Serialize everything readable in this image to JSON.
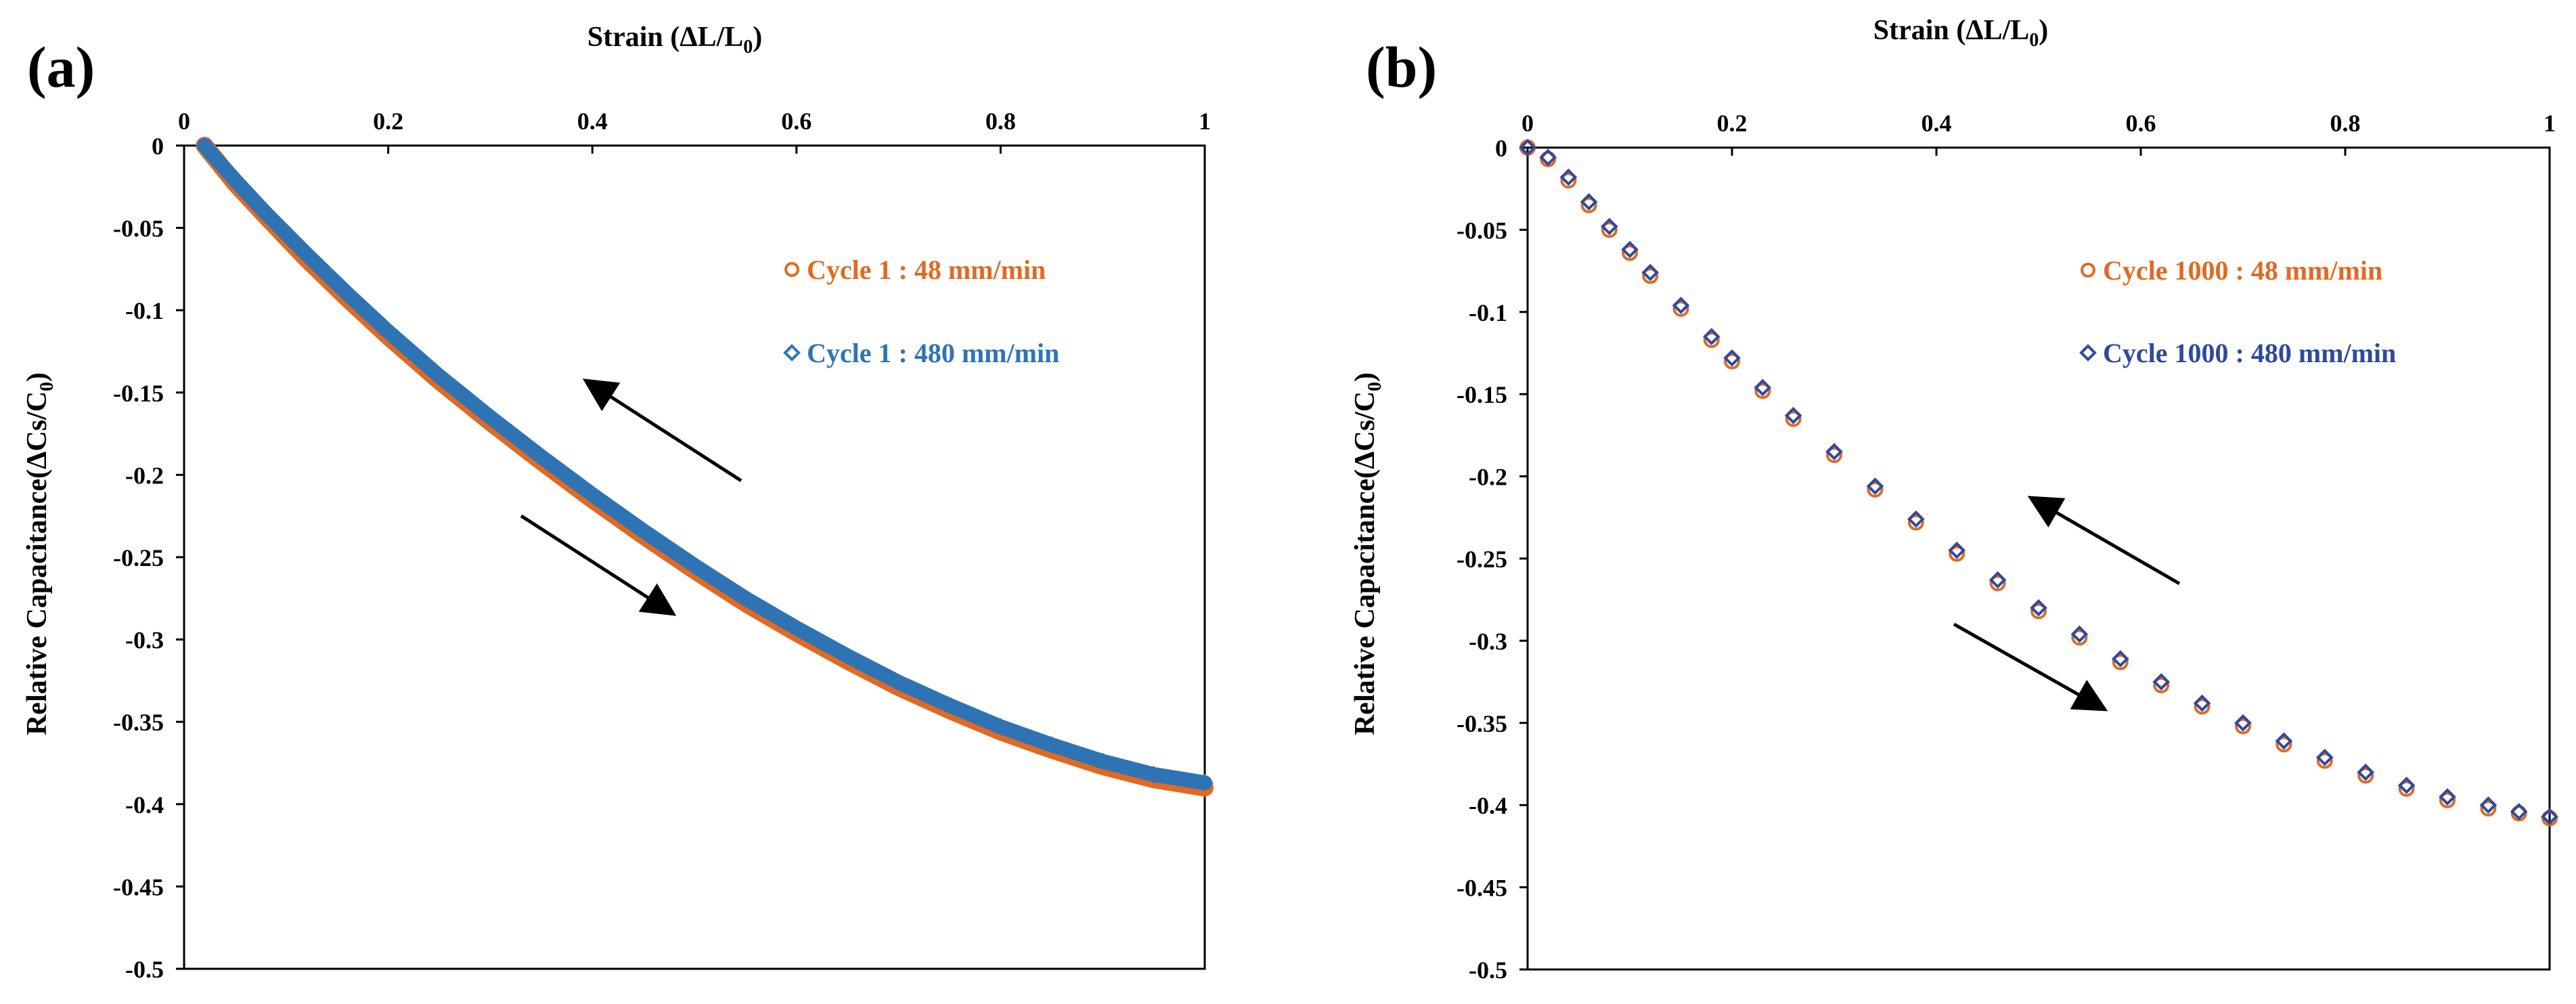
{
  "chart_data": [
    {
      "panel_label": "(a)",
      "type": "scatter",
      "title": "",
      "xlabel": {
        "main": "Strain (ΔL/L",
        "sub": "0",
        "close": ")"
      },
      "ylabel": {
        "main": "Relative Capacitance(ΔCs/C",
        "sub": "0",
        "close": ")"
      },
      "xaxis_position": "top",
      "xlim": [
        0,
        1
      ],
      "ylim": [
        -0.5,
        0
      ],
      "xticks": [
        0,
        0.2,
        0.4,
        0.6,
        0.8,
        1
      ],
      "xtick_labels": [
        "0",
        "0.2",
        "0.4",
        "0.6",
        "0.8",
        "1"
      ],
      "yticks": [
        0,
        -0.05,
        -0.1,
        -0.15,
        -0.2,
        -0.25,
        -0.3,
        -0.35,
        -0.4,
        -0.45,
        -0.5
      ],
      "ytick_labels": [
        "0",
        "-0.05",
        "-0.1",
        "-0.15",
        "-0.2",
        "-0.25",
        "-0.3",
        "-0.35",
        "-0.4",
        "-0.45",
        "-0.5"
      ],
      "grid": false,
      "legend_position": "upper-right",
      "series": [
        {
          "name": "Cycle 1 : 48 mm/min",
          "marker": "circle",
          "color": "#E06A23",
          "x": [
            0.02,
            0.05,
            0.08,
            0.12,
            0.16,
            0.2,
            0.25,
            0.3,
            0.35,
            0.4,
            0.45,
            0.5,
            0.55,
            0.6,
            0.65,
            0.7,
            0.75,
            0.8,
            0.85,
            0.9,
            0.95,
            1.0
          ],
          "y": [
            0,
            -0.023,
            -0.043,
            -0.069,
            -0.093,
            -0.116,
            -0.143,
            -0.168,
            -0.192,
            -0.215,
            -0.237,
            -0.258,
            -0.278,
            -0.296,
            -0.313,
            -0.329,
            -0.343,
            -0.356,
            -0.367,
            -0.377,
            -0.385,
            -0.39
          ]
        },
        {
          "name": "Cycle 1 : 480 mm/min",
          "marker": "diamond",
          "color": "#2E74B5",
          "x": [
            0.02,
            0.05,
            0.08,
            0.12,
            0.16,
            0.2,
            0.25,
            0.3,
            0.35,
            0.4,
            0.45,
            0.5,
            0.55,
            0.6,
            0.65,
            0.7,
            0.75,
            0.8,
            0.85,
            0.9,
            0.95,
            1.0
          ],
          "y": [
            0,
            -0.021,
            -0.041,
            -0.066,
            -0.09,
            -0.113,
            -0.14,
            -0.165,
            -0.189,
            -0.212,
            -0.234,
            -0.255,
            -0.275,
            -0.293,
            -0.31,
            -0.326,
            -0.34,
            -0.353,
            -0.364,
            -0.374,
            -0.382,
            -0.387
          ]
        }
      ],
      "annotations": [
        {
          "type": "arrow",
          "direction": "up-left",
          "meaning": "release"
        },
        {
          "type": "arrow",
          "direction": "down-right",
          "meaning": "stretch"
        }
      ]
    },
    {
      "panel_label": "(b)",
      "type": "scatter",
      "title": "",
      "xlabel": {
        "main": "Strain (ΔL/L",
        "sub": "0",
        "close": ")"
      },
      "ylabel": {
        "main": "Relative Capacitance(ΔCs/C",
        "sub": "0",
        "close": ")"
      },
      "xaxis_position": "top",
      "xlim": [
        0,
        1
      ],
      "ylim": [
        -0.5,
        0
      ],
      "xticks": [
        0,
        0.2,
        0.4,
        0.6,
        0.8,
        1
      ],
      "xtick_labels": [
        "0",
        "0.2",
        "0.4",
        "0.6",
        "0.8",
        "1"
      ],
      "yticks": [
        0,
        -0.05,
        -0.1,
        -0.15,
        -0.2,
        -0.25,
        -0.3,
        -0.35,
        -0.4,
        -0.45,
        -0.5
      ],
      "ytick_labels": [
        "0",
        "-0.05",
        "-0.1",
        "-0.15",
        "-0.2",
        "-0.25",
        "-0.3",
        "-0.35",
        "-0.4",
        "-0.45",
        "-0.5"
      ],
      "grid": false,
      "legend_position": "upper-right",
      "series": [
        {
          "name": "Cycle 1000 : 48 mm/min",
          "marker": "circle",
          "color": "#E06A23",
          "x": [
            0.0,
            0.02,
            0.04,
            0.06,
            0.08,
            0.1,
            0.12,
            0.15,
            0.18,
            0.2,
            0.23,
            0.26,
            0.3,
            0.34,
            0.38,
            0.42,
            0.46,
            0.5,
            0.54,
            0.58,
            0.62,
            0.66,
            0.7,
            0.74,
            0.78,
            0.82,
            0.86,
            0.9,
            0.94,
            0.97,
            1.0
          ],
          "y": [
            0,
            -0.007,
            -0.02,
            -0.035,
            -0.05,
            -0.064,
            -0.078,
            -0.098,
            -0.117,
            -0.13,
            -0.148,
            -0.165,
            -0.187,
            -0.208,
            -0.228,
            -0.247,
            -0.265,
            -0.282,
            -0.298,
            -0.313,
            -0.327,
            -0.34,
            -0.352,
            -0.363,
            -0.373,
            -0.382,
            -0.39,
            -0.397,
            -0.402,
            -0.405,
            -0.408
          ]
        },
        {
          "name": "Cycle 1000 : 480 mm/min",
          "marker": "diamond",
          "color": "#2F4A9C",
          "x": [
            0.0,
            0.02,
            0.04,
            0.06,
            0.08,
            0.1,
            0.12,
            0.15,
            0.18,
            0.2,
            0.23,
            0.26,
            0.3,
            0.34,
            0.38,
            0.42,
            0.46,
            0.5,
            0.54,
            0.58,
            0.62,
            0.66,
            0.7,
            0.74,
            0.78,
            0.82,
            0.86,
            0.9,
            0.94,
            0.97,
            1.0
          ],
          "y": [
            0,
            -0.006,
            -0.018,
            -0.033,
            -0.048,
            -0.062,
            -0.076,
            -0.096,
            -0.115,
            -0.128,
            -0.146,
            -0.163,
            -0.185,
            -0.206,
            -0.226,
            -0.245,
            -0.263,
            -0.28,
            -0.296,
            -0.311,
            -0.325,
            -0.338,
            -0.35,
            -0.361,
            -0.371,
            -0.38,
            -0.388,
            -0.395,
            -0.4,
            -0.404,
            -0.407
          ]
        }
      ],
      "annotations": [
        {
          "type": "arrow",
          "direction": "up-left",
          "meaning": "release"
        },
        {
          "type": "arrow",
          "direction": "down-right",
          "meaning": "stretch"
        }
      ]
    }
  ]
}
